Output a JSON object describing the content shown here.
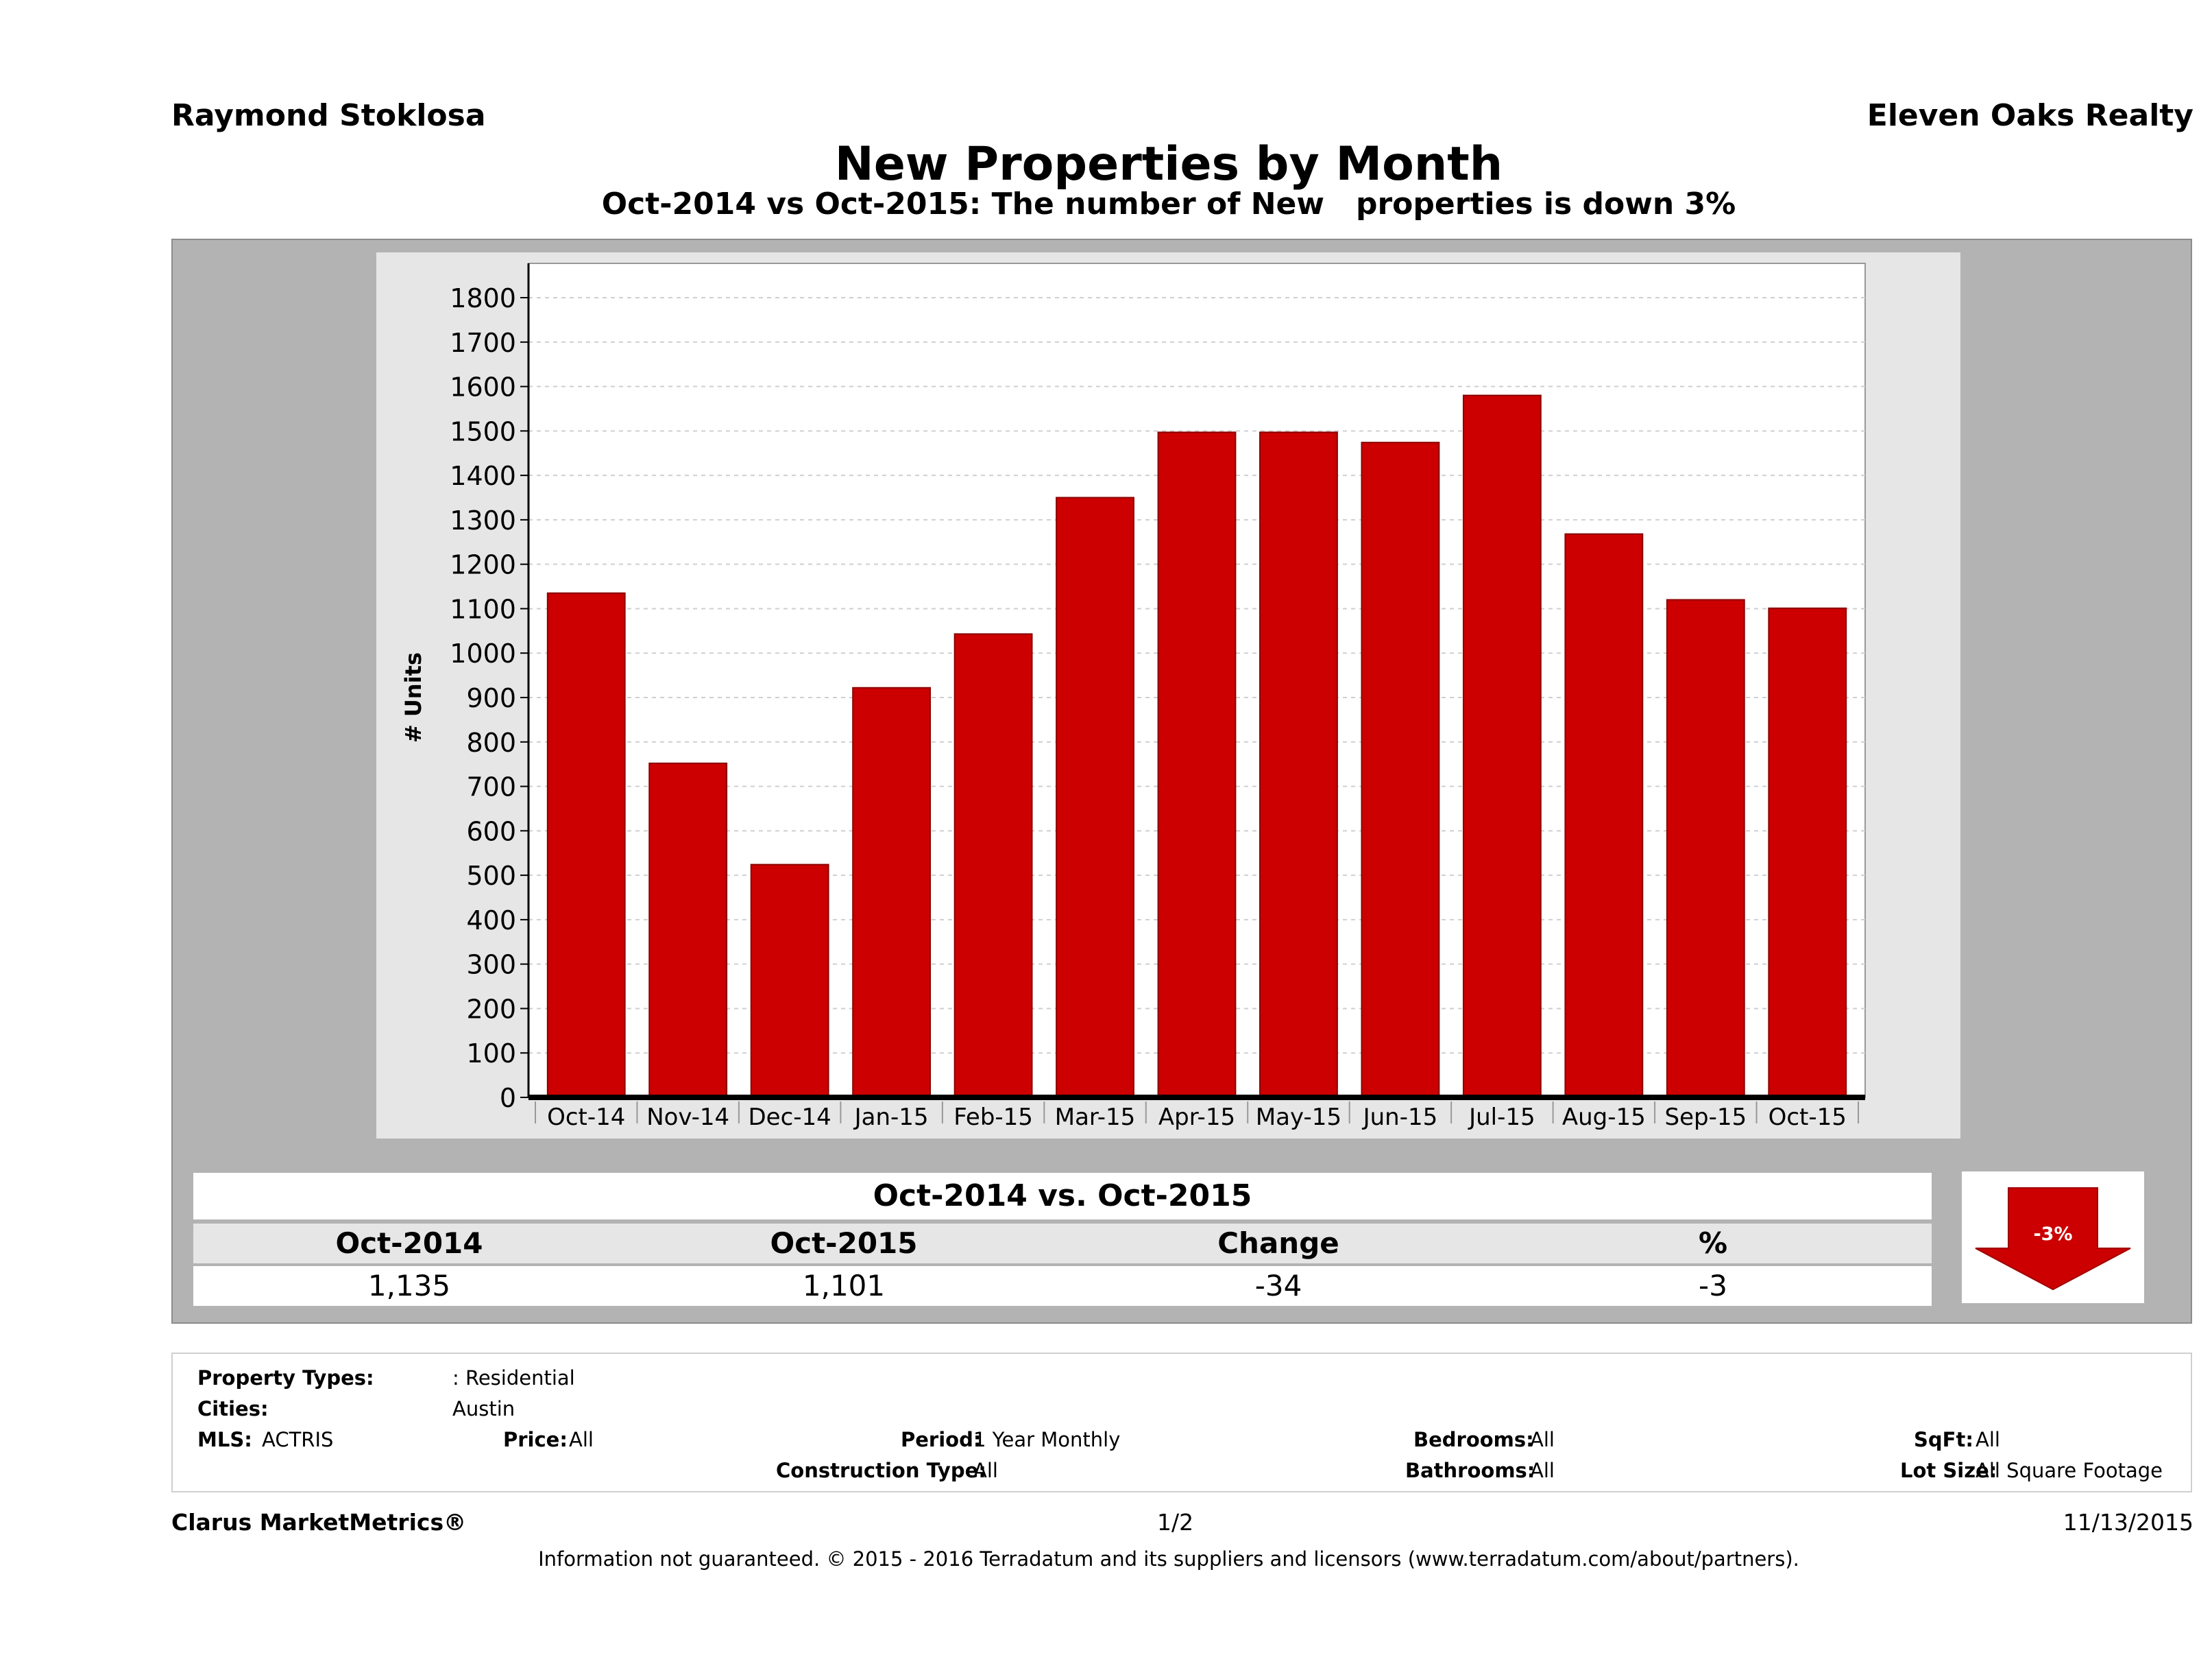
{
  "header": {
    "agent_name": "Raymond Stoklosa",
    "brokerage": "Eleven Oaks Realty",
    "title": "New Properties by Month",
    "subtitle": "Oct-2014 vs Oct-2015: The number of New   properties is down 3%"
  },
  "chart_data": {
    "type": "bar",
    "categories": [
      "Oct-14",
      "Nov-14",
      "Dec-14",
      "Jan-15",
      "Feb-15",
      "Mar-15",
      "Apr-15",
      "May-15",
      "Jun-15",
      "Jul-15",
      "Aug-15",
      "Sep-15",
      "Oct-15"
    ],
    "series": [
      {
        "values": [
          1135,
          752,
          524,
          922,
          1043,
          1350,
          1497,
          1497,
          1474,
          1580,
          1268,
          1120,
          1101
        ]
      }
    ],
    "ylabel": "# Units",
    "xlabel": "",
    "ylim": [
      0,
      1800
    ],
    "yticks": [
      0,
      100,
      200,
      300,
      400,
      500,
      600,
      700,
      800,
      900,
      1000,
      1100,
      1200,
      1300,
      1400,
      1500,
      1600,
      1700,
      1800
    ],
    "grid": true,
    "bar_color": "#cc0000"
  },
  "comparison": {
    "title": "Oct-2014 vs. Oct-2015",
    "headers": [
      "Oct-2014",
      "Oct-2015",
      "Change",
      "%"
    ],
    "values": [
      "1,135",
      "1,101",
      "-34",
      "-3"
    ],
    "arrow_label": "-3%",
    "arrow_color": "#cc0000"
  },
  "criteria": {
    "property_types_label": "Property Types:",
    "property_types_value": ": Residential",
    "cities_label": "Cities:",
    "cities_value": "Austin",
    "mls_label": "MLS:",
    "mls_value": "ACTRIS",
    "price_label": "Price:",
    "price_value": "All",
    "period_label": "Period:",
    "period_value": "1 Year Monthly",
    "construction_label": "Construction Type:",
    "construction_value": "All",
    "bedrooms_label": "Bedrooms:",
    "bedrooms_value": "All",
    "bathrooms_label": "Bathrooms:",
    "bathrooms_value": "All",
    "sqft_label": "SqFt:",
    "sqft_value": "All",
    "lotsize_label": "Lot Size:",
    "lotsize_value": "All Square Footage"
  },
  "footer": {
    "product": "Clarus MarketMetrics®",
    "page": "1/2",
    "date": "11/13/2015",
    "disclaimer": "Information not guaranteed. © 2015 - 2016 Terradatum and its suppliers and licensors (www.terradatum.com/about/partners)."
  }
}
